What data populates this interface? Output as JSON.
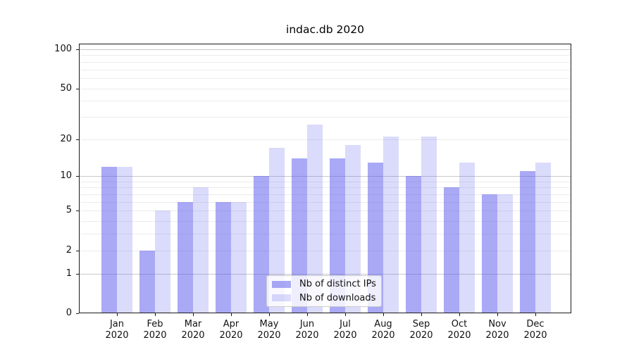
{
  "chart_data": {
    "type": "bar",
    "title": "indac.db 2020",
    "categories": [
      "Jan\n2020",
      "Feb\n2020",
      "Mar\n2020",
      "Apr\n2020",
      "May\n2020",
      "Jun\n2020",
      "Jul\n2020",
      "Aug\n2020",
      "Sep\n2020",
      "Oct\n2020",
      "Nov\n2020",
      "Dec\n2020"
    ],
    "series": [
      {
        "name": "Nb of distinct IPs",
        "color": "rgba(83,83,235,0.5)",
        "values": [
          12,
          2,
          6,
          6,
          10,
          14,
          14,
          13,
          10,
          8,
          7,
          11
        ]
      },
      {
        "name": "Nb of downloads",
        "color": "rgba(83,83,235,0.21)",
        "values": [
          12,
          5,
          8,
          6,
          17,
          26,
          18,
          21,
          21,
          13,
          7,
          13
        ]
      }
    ],
    "xlabel": "",
    "ylabel": "",
    "yscale": "log1p",
    "ylim": [
      0,
      100
    ],
    "yticks": {
      "values": [
        0,
        1,
        2,
        5,
        10,
        20,
        50,
        100
      ],
      "labels": [
        "0",
        "1",
        "2",
        "5",
        "10",
        "20",
        "50",
        "100"
      ]
    },
    "grid": {
      "on": true,
      "major_values": [
        1,
        10,
        100
      ],
      "minor_values": [
        2,
        3,
        4,
        5,
        6,
        7,
        8,
        9,
        20,
        30,
        40,
        50,
        60,
        70,
        80,
        90
      ],
      "major_color": "#c9c9c9",
      "minor_color": "#ececec"
    },
    "legend": {
      "position": "lower center"
    },
    "colors": {
      "axis": "#1a1a1a",
      "text": "#111111",
      "background": "#ffffff"
    }
  }
}
